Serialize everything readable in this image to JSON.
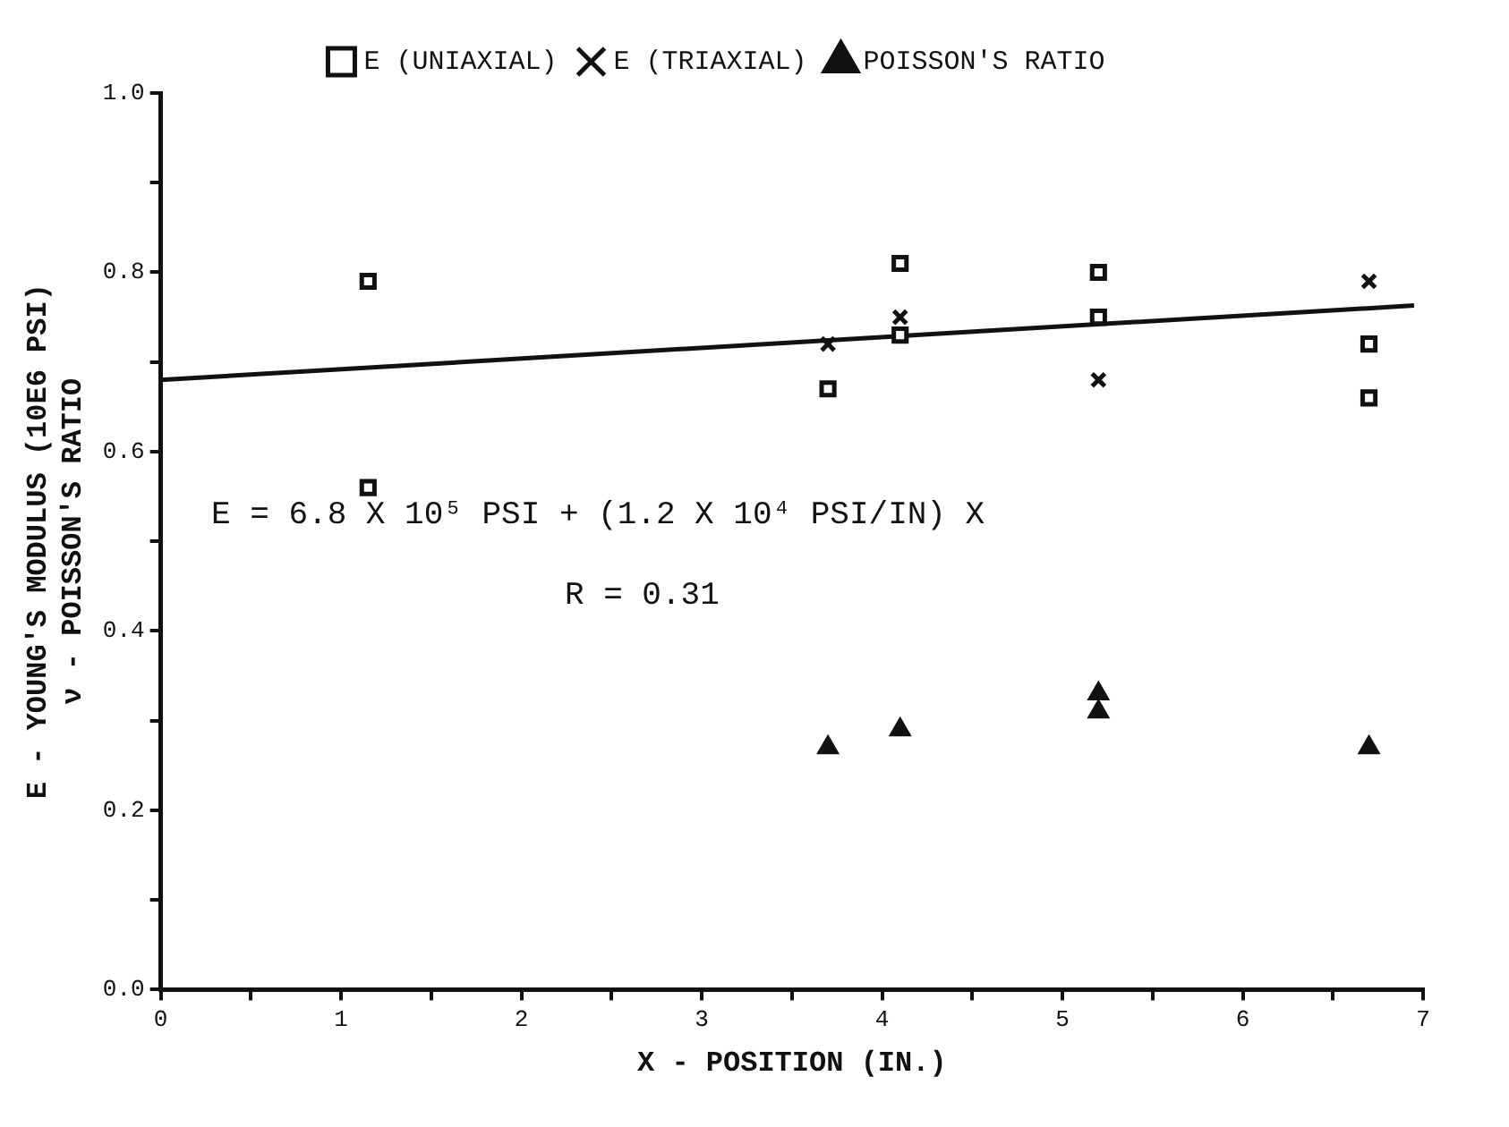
{
  "chart_data": {
    "type": "scatter",
    "xlabel": "X - POSITION (IN.)",
    "ylabel": "E - YOUNG'S MODULUS (10E6 PSI)\nν - POISSON'S RATIO",
    "series": [
      {
        "name": "E (UNIAXIAL)",
        "color": "#111111",
        "marker": "square",
        "x": [
          1.15,
          1.15,
          3.7,
          4.1,
          4.1,
          5.2,
          5.2,
          6.7,
          6.7
        ],
        "values": [
          0.79,
          0.56,
          0.67,
          0.81,
          0.73,
          0.8,
          0.75,
          0.72,
          0.66
        ]
      },
      {
        "name": "E (TRIAXIAL)",
        "color": "#111111",
        "marker": "cross",
        "x": [
          3.7,
          4.1,
          5.2,
          6.7
        ],
        "values": [
          0.72,
          0.75,
          0.68,
          0.79
        ]
      },
      {
        "name": "POISSON'S RATIO",
        "color": "#111111",
        "marker": "triangle",
        "x": [
          3.7,
          4.1,
          5.2,
          5.2,
          6.7
        ],
        "values": [
          0.27,
          0.29,
          0.33,
          0.31,
          0.27
        ]
      },
      {
        "type": "line",
        "color": "#111111",
        "marker": "none",
        "x": [
          0,
          6.95
        ],
        "values": [
          0.68,
          0.763
        ]
      }
    ],
    "annotations": [
      "E = 6.8 X 10⁵ PSI + (1.2 X 10⁴ PSI/IN) X",
      "R = 0.31"
    ],
    "xlim": [
      0,
      7
    ],
    "ylim": [
      0,
      1
    ],
    "xticks": [
      0,
      {
        "value": 0.5,
        "label": null
      },
      1,
      {
        "value": 1.5,
        "label": null
      },
      2,
      {
        "value": 2.5,
        "label": null
      },
      3,
      {
        "value": 3.5,
        "label": null
      },
      4,
      {
        "value": 4.5,
        "label": null
      },
      5,
      {
        "value": 5.5,
        "label": null
      },
      6,
      {
        "value": 6.5,
        "label": null
      },
      7
    ],
    "yticks": [
      {
        "value": 0,
        "label": "0.0"
      },
      {
        "value": 0.1,
        "label": null
      },
      {
        "value": 0.2,
        "label": "0.2"
      },
      {
        "value": 0.3,
        "label": null
      },
      {
        "value": 0.4,
        "label": "0.4"
      },
      {
        "value": 0.5,
        "label": null
      },
      {
        "value": 0.6,
        "label": "0.6"
      },
      {
        "value": 0.7,
        "label": null
      },
      {
        "value": 0.8,
        "label": "0.8"
      },
      {
        "value": 0.9,
        "label": null
      },
      {
        "value": 1,
        "label": "1.0"
      }
    ],
    "grid": false,
    "legend": "top"
  }
}
